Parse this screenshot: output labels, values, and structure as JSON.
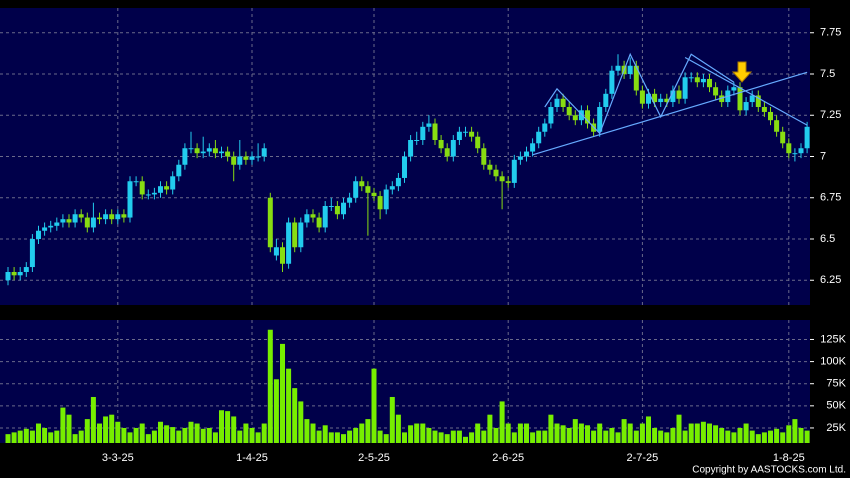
{
  "chart_data": {
    "type": "candlestick",
    "categories": [
      null,
      null,
      null,
      null,
      null,
      null,
      null,
      null,
      null,
      null,
      null,
      null,
      null,
      null,
      null,
      null,
      null,
      null,
      "3-3-25",
      null,
      null,
      null,
      null,
      null,
      null,
      null,
      null,
      null,
      null,
      null,
      null,
      null,
      null,
      null,
      null,
      null,
      null,
      null,
      null,
      null,
      "1-4-25",
      null,
      null,
      null,
      null,
      null,
      null,
      null,
      null,
      null,
      null,
      null,
      null,
      null,
      null,
      null,
      null,
      null,
      null,
      null,
      "2-5-25",
      null,
      null,
      null,
      null,
      null,
      null,
      null,
      null,
      null,
      null,
      null,
      null,
      null,
      null,
      null,
      null,
      null,
      null,
      null,
      null,
      null,
      "2-6-25",
      null,
      null,
      null,
      null,
      null,
      null,
      null,
      null,
      null,
      null,
      null,
      null,
      null,
      null,
      null,
      null,
      null,
      null,
      null,
      null,
      null,
      "2-7-25",
      null,
      null,
      null,
      null,
      null,
      null,
      null,
      null,
      null,
      null,
      null,
      null,
      null,
      null,
      null,
      null,
      null,
      null,
      null,
      null,
      null,
      null,
      null,
      "1-8-25",
      null,
      null,
      null
    ],
    "ohlc": [
      [
        6.25,
        6.33,
        6.22,
        6.3
      ],
      [
        6.3,
        6.33,
        6.25,
        6.28
      ],
      [
        6.28,
        6.33,
        6.25,
        6.3
      ],
      [
        6.3,
        6.36,
        6.27,
        6.33
      ],
      [
        6.33,
        6.53,
        6.3,
        6.5
      ],
      [
        6.5,
        6.58,
        6.47,
        6.55
      ],
      [
        6.55,
        6.6,
        6.52,
        6.57
      ],
      [
        6.57,
        6.61,
        6.54,
        6.58
      ],
      [
        6.58,
        6.63,
        6.55,
        6.6
      ],
      [
        6.6,
        6.65,
        6.57,
        6.62
      ],
      [
        6.62,
        6.65,
        6.57,
        6.6
      ],
      [
        6.6,
        6.68,
        6.57,
        6.65
      ],
      [
        6.65,
        6.68,
        6.6,
        6.63
      ],
      [
        6.63,
        6.66,
        6.54,
        6.57
      ],
      [
        6.57,
        6.72,
        6.54,
        6.63
      ],
      [
        6.63,
        6.66,
        6.59,
        6.62
      ],
      [
        6.62,
        6.68,
        6.59,
        6.65
      ],
      [
        6.65,
        6.68,
        6.59,
        6.62
      ],
      [
        6.62,
        6.68,
        6.59,
        6.65
      ],
      [
        6.65,
        6.68,
        6.6,
        6.63
      ],
      [
        6.63,
        6.88,
        6.6,
        6.85
      ],
      [
        6.85,
        6.88,
        6.82,
        6.85
      ],
      [
        6.85,
        6.88,
        6.74,
        6.77
      ],
      [
        6.77,
        6.8,
        6.74,
        6.77
      ],
      [
        6.77,
        6.81,
        6.74,
        6.78
      ],
      [
        6.78,
        6.85,
        6.75,
        6.82
      ],
      [
        6.82,
        6.85,
        6.77,
        6.8
      ],
      [
        6.8,
        6.91,
        6.77,
        6.88
      ],
      [
        6.88,
        6.98,
        6.85,
        6.95
      ],
      [
        6.95,
        7.08,
        6.92,
        7.05
      ],
      [
        7.05,
        7.15,
        7.02,
        7.05
      ],
      [
        7.05,
        7.08,
        6.99,
        7.02
      ],
      [
        7.02,
        7.12,
        6.99,
        7.03
      ],
      [
        7.03,
        7.08,
        7.0,
        7.05
      ],
      [
        7.05,
        7.1,
        6.99,
        7.02
      ],
      [
        7.02,
        7.06,
        6.99,
        7.03
      ],
      [
        7.03,
        7.06,
        6.97,
        7.0
      ],
      [
        7.0,
        7.03,
        6.85,
        6.95
      ],
      [
        6.95,
        7.1,
        6.92,
        7.0
      ],
      [
        7.0,
        7.03,
        6.95,
        6.98
      ],
      [
        6.98,
        7.03,
        6.95,
        7.0
      ],
      [
        7.0,
        7.08,
        6.97,
        7.0
      ],
      [
        7.0,
        7.08,
        6.97,
        7.05
      ],
      [
        6.75,
        6.78,
        6.42,
        6.45
      ],
      [
        6.4,
        6.5,
        6.37,
        6.45
      ],
      [
        6.45,
        6.48,
        6.3,
        6.35
      ],
      [
        6.35,
        6.63,
        6.32,
        6.6
      ],
      [
        6.6,
        6.63,
        6.42,
        6.45
      ],
      [
        6.45,
        6.63,
        6.42,
        6.6
      ],
      [
        6.6,
        6.68,
        6.57,
        6.65
      ],
      [
        6.65,
        6.68,
        6.6,
        6.63
      ],
      [
        6.63,
        6.66,
        6.54,
        6.57
      ],
      [
        6.57,
        6.73,
        6.54,
        6.7
      ],
      [
        6.7,
        6.75,
        6.67,
        6.7
      ],
      [
        6.7,
        6.73,
        6.62,
        6.65
      ],
      [
        6.65,
        6.75,
        6.62,
        6.72
      ],
      [
        6.72,
        6.78,
        6.69,
        6.75
      ],
      [
        6.75,
        6.88,
        6.72,
        6.85
      ],
      [
        6.85,
        6.88,
        6.79,
        6.82
      ],
      [
        6.82,
        6.85,
        6.52,
        6.78
      ],
      [
        6.78,
        6.81,
        6.73,
        6.76
      ],
      [
        6.76,
        6.79,
        6.62,
        6.68
      ],
      [
        6.68,
        6.83,
        6.65,
        6.8
      ],
      [
        6.8,
        6.85,
        6.77,
        6.82
      ],
      [
        6.82,
        6.9,
        6.79,
        6.87
      ],
      [
        6.87,
        7.03,
        6.84,
        7.0
      ],
      [
        7.0,
        7.13,
        6.97,
        7.1
      ],
      [
        7.1,
        7.15,
        7.07,
        7.1
      ],
      [
        7.1,
        7.21,
        7.07,
        7.18
      ],
      [
        7.18,
        7.25,
        7.15,
        7.2
      ],
      [
        7.2,
        7.23,
        7.07,
        7.1
      ],
      [
        7.1,
        7.13,
        7.02,
        7.05
      ],
      [
        7.05,
        7.08,
        6.97,
        7.0
      ],
      [
        7.0,
        7.13,
        6.97,
        7.1
      ],
      [
        7.1,
        7.18,
        7.07,
        7.15
      ],
      [
        7.15,
        7.18,
        7.12,
        7.15
      ],
      [
        7.15,
        7.18,
        7.09,
        7.12
      ],
      [
        7.12,
        7.15,
        7.02,
        7.05
      ],
      [
        7.05,
        7.08,
        6.92,
        6.95
      ],
      [
        6.95,
        6.98,
        6.89,
        6.92
      ],
      [
        6.92,
        6.95,
        6.85,
        6.88
      ],
      [
        6.88,
        6.91,
        6.68,
        6.85
      ],
      [
        6.85,
        6.88,
        6.81,
        6.84
      ],
      [
        6.84,
        7.01,
        6.81,
        6.98
      ],
      [
        6.98,
        7.03,
        6.95,
        7.0
      ],
      [
        7.0,
        7.06,
        6.97,
        7.03
      ],
      [
        7.03,
        7.11,
        7.0,
        7.08
      ],
      [
        7.08,
        7.18,
        7.05,
        7.15
      ],
      [
        7.15,
        7.23,
        7.12,
        7.2
      ],
      [
        7.2,
        7.33,
        7.17,
        7.3
      ],
      [
        7.3,
        7.38,
        7.27,
        7.35
      ],
      [
        7.35,
        7.38,
        7.27,
        7.3
      ],
      [
        7.3,
        7.33,
        7.22,
        7.25
      ],
      [
        7.25,
        7.28,
        7.19,
        7.22
      ],
      [
        7.22,
        7.31,
        7.19,
        7.28
      ],
      [
        7.28,
        7.31,
        7.17,
        7.2
      ],
      [
        7.2,
        7.23,
        7.12,
        7.15
      ],
      [
        7.15,
        7.33,
        7.12,
        7.3
      ],
      [
        7.3,
        7.41,
        7.27,
        7.38
      ],
      [
        7.38,
        7.55,
        7.35,
        7.52
      ],
      [
        7.52,
        7.62,
        7.49,
        7.55
      ],
      [
        7.55,
        7.58,
        7.47,
        7.5
      ],
      [
        7.5,
        7.6,
        7.47,
        7.55
      ],
      [
        7.55,
        7.58,
        7.37,
        7.4
      ],
      [
        7.4,
        7.43,
        7.29,
        7.32
      ],
      [
        7.32,
        7.41,
        7.29,
        7.38
      ],
      [
        7.38,
        7.41,
        7.3,
        7.33
      ],
      [
        7.33,
        7.38,
        7.3,
        7.35
      ],
      [
        7.35,
        7.38,
        7.3,
        7.33
      ],
      [
        7.33,
        7.43,
        7.3,
        7.4
      ],
      [
        7.4,
        7.43,
        7.32,
        7.35
      ],
      [
        7.35,
        7.51,
        7.32,
        7.48
      ],
      [
        7.48,
        7.51,
        7.45,
        7.48
      ],
      [
        7.48,
        7.51,
        7.42,
        7.45
      ],
      [
        7.45,
        7.5,
        7.42,
        7.47
      ],
      [
        7.47,
        7.5,
        7.39,
        7.42
      ],
      [
        7.42,
        7.45,
        7.34,
        7.37
      ],
      [
        7.37,
        7.4,
        7.3,
        7.33
      ],
      [
        7.33,
        7.43,
        7.3,
        7.4
      ],
      [
        7.4,
        7.45,
        7.37,
        7.42
      ],
      [
        7.42,
        7.45,
        7.25,
        7.28
      ],
      [
        7.28,
        7.36,
        7.25,
        7.33
      ],
      [
        7.33,
        7.4,
        7.3,
        7.37
      ],
      [
        7.37,
        7.4,
        7.27,
        7.3
      ],
      [
        7.3,
        7.33,
        7.24,
        7.27
      ],
      [
        7.27,
        7.3,
        7.19,
        7.22
      ],
      [
        7.22,
        7.25,
        7.12,
        7.15
      ],
      [
        7.15,
        7.18,
        7.05,
        7.08
      ],
      [
        7.08,
        7.11,
        6.99,
        7.02
      ],
      [
        7.02,
        7.05,
        6.97,
        7.02
      ],
      [
        7.02,
        7.08,
        6.99,
        7.05
      ],
      [
        7.05,
        7.21,
        7.02,
        7.18
      ]
    ],
    "up_color": "#22ccee",
    "down_color": "#88dd11",
    "ylim": [
      6.1,
      7.9
    ],
    "yticks": [
      6.25,
      6.5,
      6.75,
      7,
      7.25,
      7.5,
      7.75
    ],
    "volume": [
      18000,
      20000,
      22000,
      24000,
      22000,
      30000,
      25000,
      20000,
      22000,
      48000,
      40000,
      18000,
      22000,
      35000,
      60000,
      30000,
      38000,
      40000,
      32000,
      25000,
      20000,
      25000,
      30000,
      18000,
      22000,
      32000,
      28000,
      26000,
      22000,
      25000,
      32000,
      30000,
      24000,
      25000,
      20000,
      45000,
      44000,
      38000,
      22000,
      30000,
      25000,
      20000,
      30000,
      136000,
      80000,
      120000,
      92000,
      70000,
      55000,
      35000,
      30000,
      22000,
      28000,
      20000,
      20000,
      18000,
      22000,
      25000,
      30000,
      35000,
      92000,
      22000,
      18000,
      60000,
      40000,
      20000,
      28000,
      30000,
      30000,
      25000,
      22000,
      20000,
      18000,
      22000,
      22000,
      15000,
      20000,
      30000,
      22000,
      40000,
      25000,
      55000,
      30000,
      20000,
      30000,
      30000,
      20000,
      22000,
      22000,
      40000,
      30000,
      28000,
      25000,
      35000,
      30000,
      28000,
      22000,
      30000,
      22000,
      25000,
      20000,
      35000,
      30000,
      22000,
      30000,
      38000,
      25000,
      22000,
      20000,
      25000,
      40000,
      22000,
      30000,
      30000,
      32000,
      30000,
      28000,
      25000,
      22000,
      20000,
      25000,
      30000,
      22000,
      18000,
      20000,
      22000,
      24000,
      20000,
      28000,
      35000,
      25000,
      22000
    ],
    "volume_color": "#77ee00",
    "vlim": [
      8000,
      147000
    ],
    "vticks": [
      {
        "value": 25000,
        "label": "25K"
      },
      {
        "value": 50000,
        "label": "50K"
      },
      {
        "value": 75000,
        "label": "75K"
      },
      {
        "value": 100000,
        "label": "100K"
      },
      {
        "value": 125000,
        "label": "125K"
      }
    ],
    "trendline_color": "#66aaff",
    "trendlines": [
      [
        [
          86,
          7.01
        ],
        [
          131,
          7.51
        ]
      ],
      [
        [
          111,
          7.6
        ],
        [
          131,
          7.19
        ]
      ],
      [
        [
          88,
          7.3
        ],
        [
          90,
          7.41
        ],
        [
          97,
          7.14
        ],
        [
          102,
          7.62
        ],
        [
          107,
          7.24
        ],
        [
          112,
          7.62
        ],
        [
          119,
          7.45
        ]
      ]
    ],
    "grid": true,
    "copyright": "Copyright by AASTOCKS.com Ltd."
  }
}
